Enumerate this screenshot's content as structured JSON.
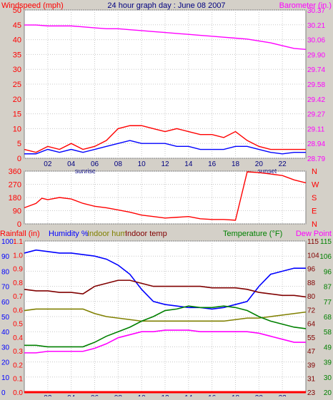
{
  "page": {
    "title": "24 hour graph day : June 08 2007",
    "colors": {
      "background": "#d4d0c8",
      "plot": "#ffffff"
    }
  },
  "chart_data": [
    {
      "type": "line",
      "title": "24 hour graph day : June 08 2007",
      "ylabel_left": "Windspeed (mph)",
      "ylabel_right": "Barometer (in.)",
      "xlabel": "",
      "xlim": [
        0,
        24
      ],
      "x_ticks": [
        "02",
        "04",
        "06",
        "08",
        "10",
        "12",
        "14",
        "16",
        "18",
        "20",
        "22"
      ],
      "x_tick_values": [
        2,
        4,
        6,
        8,
        10,
        12,
        14,
        16,
        18,
        20,
        22
      ],
      "x_annotations": [
        {
          "label": "sunrise",
          "x": 5.2
        },
        {
          "label": "sunset",
          "x": 20.7
        }
      ],
      "ylim_left": [
        0,
        50
      ],
      "y_ticks_left": [
        "0",
        "5",
        "10",
        "15",
        "20",
        "25",
        "30",
        "35",
        "40",
        "45",
        "50"
      ],
      "ylim_right": [
        28.79,
        30.37
      ],
      "y_ticks_right": [
        "28.79",
        "28.94",
        "29.11",
        "29.27",
        "29.42",
        "29.58",
        "29.74",
        "29.90",
        "30.06",
        "30.21",
        "30.37"
      ],
      "grid": true,
      "series": [
        {
          "axis": "right",
          "color": "#ff00ff",
          "x": [
            0,
            1,
            2,
            3,
            4,
            5,
            6,
            7,
            8,
            9,
            10,
            11,
            12,
            13,
            14,
            15,
            16,
            17,
            18,
            19,
            20,
            21,
            22,
            23,
            24
          ],
          "values": [
            30.21,
            30.21,
            30.2,
            30.2,
            30.2,
            30.19,
            30.18,
            30.17,
            30.17,
            30.16,
            30.15,
            30.14,
            30.13,
            30.12,
            30.11,
            30.1,
            30.09,
            30.08,
            30.07,
            30.06,
            30.04,
            30.02,
            29.99,
            29.96,
            29.95
          ]
        },
        {
          "axis": "left",
          "color": "#ff0000",
          "x": [
            0,
            1,
            2,
            3,
            4,
            5,
            6,
            7,
            8,
            9,
            10,
            11,
            12,
            13,
            14,
            15,
            16,
            17,
            18,
            19,
            20,
            21,
            22,
            23,
            24
          ],
          "values": [
            3,
            2,
            4,
            3,
            5,
            3,
            4,
            6,
            10,
            11,
            11,
            10,
            9,
            10,
            9,
            8,
            8,
            7,
            9,
            6,
            4,
            3,
            3,
            3,
            3
          ]
        },
        {
          "axis": "left",
          "color": "#0000ff",
          "x": [
            0,
            1,
            2,
            3,
            4,
            5,
            6,
            7,
            8,
            9,
            10,
            11,
            12,
            13,
            14,
            15,
            16,
            17,
            18,
            19,
            20,
            21,
            22,
            23,
            24
          ],
          "values": [
            1.5,
            1.5,
            3,
            2,
            3,
            2,
            3,
            4,
            5,
            6,
            5,
            5,
            5,
            4,
            4,
            3,
            3,
            3,
            4,
            4,
            3,
            2,
            1.5,
            2,
            2
          ]
        }
      ]
    },
    {
      "type": "line",
      "ylabel_left": "",
      "ylim_left": [
        0,
        360
      ],
      "y_ticks_left": [
        "0",
        "90",
        "180",
        "270",
        "360"
      ],
      "y_ticks_right": [
        "N",
        "E",
        "S",
        "W",
        "N"
      ],
      "xlim": [
        0,
        24
      ],
      "grid": true,
      "series": [
        {
          "axis": "left",
          "color": "#ff0000",
          "x": [
            0,
            1,
            1.5,
            2,
            3,
            4,
            5,
            6,
            7,
            8,
            9,
            10,
            11,
            12,
            13,
            14,
            15,
            16,
            17,
            18,
            19,
            20,
            21,
            22,
            23,
            24
          ],
          "values": [
            110,
            140,
            175,
            165,
            180,
            170,
            140,
            120,
            110,
            95,
            80,
            60,
            50,
            40,
            45,
            50,
            35,
            30,
            30,
            25,
            355,
            350,
            340,
            330,
            300,
            280
          ]
        }
      ]
    },
    {
      "type": "line",
      "ylabel_left": "Rainfall (in)",
      "ylabel_left_2": "Humidity %",
      "ylabel_left_3": "Indoor hum",
      "ylabel_left_4": "Indoor temp",
      "ylabel_right": "Temperature (°F)",
      "ylabel_right_2": "Dew Point",
      "xlim": [
        0,
        24
      ],
      "ylim_left": [
        0,
        100
      ],
      "y_ticks_left": [
        "0",
        "10",
        "20",
        "30",
        "40",
        "50",
        "60",
        "70",
        "80",
        "90",
        "100"
      ],
      "y_ticks_rain": [
        "0.0",
        "0.1",
        "0.2",
        "0.3",
        "0.4",
        "0.5",
        "0.6",
        "0.7",
        "0.8",
        "0.9",
        "1.0",
        "1.1"
      ],
      "y_ticks_indoor": [
        "23",
        "31",
        "39",
        "47",
        "55",
        "64",
        "72",
        "80",
        "88",
        "96",
        "104",
        "115"
      ],
      "y_ticks_temp": [
        "20",
        "30",
        "39",
        "49",
        "58",
        "68",
        "77",
        "87",
        "96",
        "106",
        "115"
      ],
      "grid": true,
      "series": [
        {
          "name": "Humidity %",
          "color": "#0000ff",
          "x": [
            0,
            1,
            2,
            3,
            4,
            5,
            6,
            7,
            8,
            9,
            10,
            11,
            12,
            13,
            14,
            15,
            16,
            17,
            18,
            19,
            20,
            21,
            22,
            23,
            24
          ],
          "values": [
            92,
            94,
            93,
            92,
            92,
            91,
            90,
            88,
            84,
            78,
            68,
            60,
            58,
            57,
            56,
            56,
            55,
            56,
            58,
            60,
            70,
            78,
            80,
            82,
            82
          ]
        },
        {
          "name": "Indoor temp",
          "color": "#800000",
          "x": [
            0,
            1,
            2,
            3,
            4,
            5,
            6,
            7,
            8,
            9,
            10,
            11,
            12,
            13,
            14,
            15,
            16,
            17,
            18,
            19,
            20,
            21,
            22,
            23,
            24
          ],
          "values": [
            68,
            67,
            67,
            66,
            66,
            65,
            70,
            72,
            74,
            74,
            72,
            70,
            70,
            70,
            70,
            70,
            69,
            69,
            69,
            68,
            66,
            65,
            64,
            64,
            63
          ]
        },
        {
          "name": "Indoor hum",
          "color": "#808000",
          "x": [
            0,
            1,
            2,
            3,
            4,
            5,
            6,
            7,
            8,
            9,
            10,
            11,
            12,
            13,
            14,
            15,
            16,
            17,
            18,
            19,
            20,
            21,
            22,
            23,
            24
          ],
          "values": [
            54,
            55,
            55,
            55,
            55,
            55,
            52,
            50,
            49,
            48,
            47,
            47,
            47,
            47,
            47,
            47,
            47,
            47,
            48,
            49,
            49,
            50,
            51,
            52,
            53
          ]
        },
        {
          "name": "Temperature (°F)",
          "color": "#008000",
          "x": [
            0,
            1,
            2,
            3,
            4,
            5,
            6,
            7,
            8,
            9,
            10,
            11,
            12,
            13,
            14,
            15,
            16,
            17,
            18,
            19,
            20,
            21,
            22,
            23,
            24
          ],
          "values": [
            31,
            31,
            30,
            30,
            30,
            30,
            33,
            37,
            40,
            43,
            47,
            50,
            54,
            55,
            57,
            56,
            56,
            57,
            56,
            54,
            50,
            47,
            45,
            43,
            42
          ]
        },
        {
          "name": "Dew Point",
          "color": "#ff00ff",
          "x": [
            0,
            1,
            2,
            3,
            4,
            5,
            6,
            7,
            8,
            9,
            10,
            11,
            12,
            13,
            14,
            15,
            16,
            17,
            18,
            19,
            20,
            21,
            22,
            23,
            24
          ],
          "values": [
            26,
            26,
            27,
            27,
            27,
            27,
            29,
            32,
            36,
            38,
            40,
            40,
            41,
            41,
            41,
            40,
            40,
            40,
            40,
            40,
            39,
            37,
            35,
            33,
            33
          ]
        },
        {
          "name": "Rainfall (in)",
          "color": "#ff0000",
          "x": [
            0,
            24
          ],
          "values": [
            0,
            0
          ]
        }
      ]
    }
  ]
}
